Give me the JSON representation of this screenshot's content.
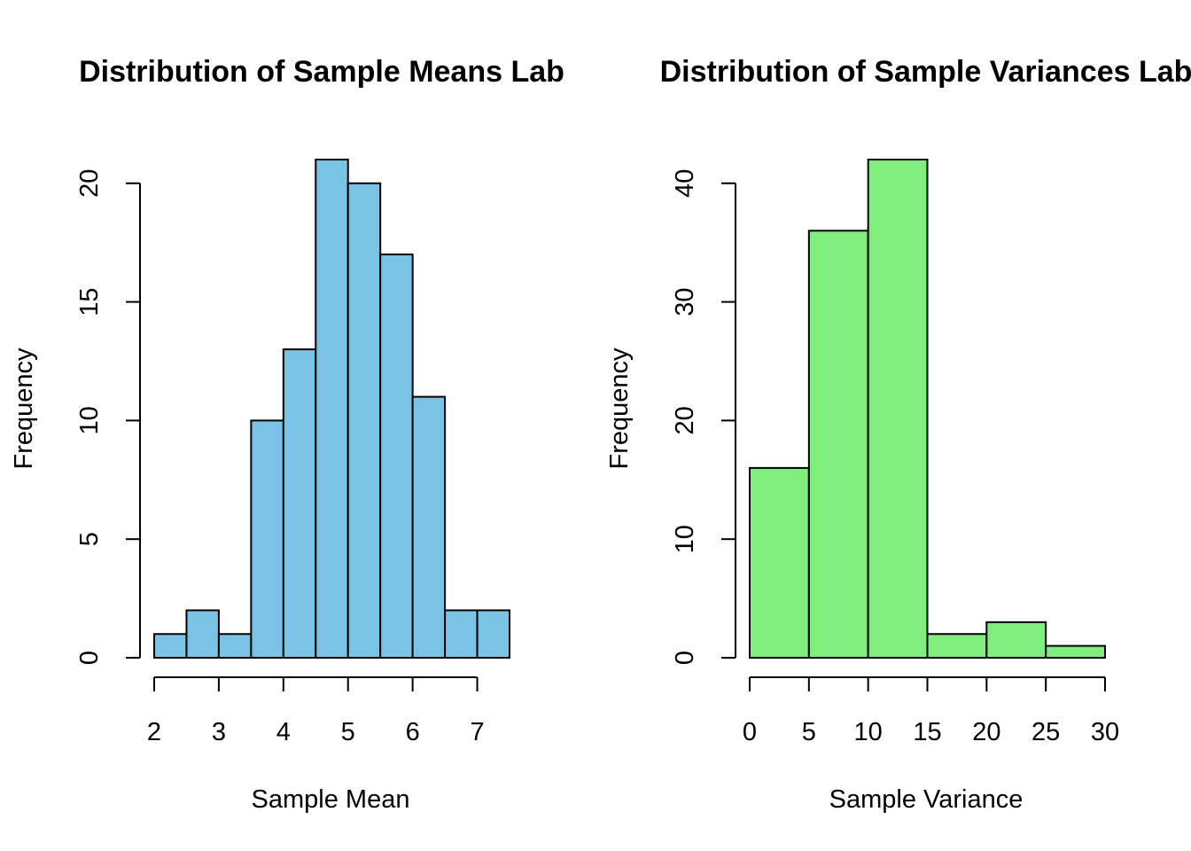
{
  "chart_data": [
    {
      "type": "histogram",
      "title": "Distribution of Sample Means Lab",
      "xlabel": "Sample Mean",
      "ylabel": "Frequency",
      "bar_color": "#7AC3E6",
      "bins": [
        [
          2.0,
          2.5
        ],
        [
          2.5,
          3.0
        ],
        [
          3.0,
          3.5
        ],
        [
          3.5,
          4.0
        ],
        [
          4.0,
          4.5
        ],
        [
          4.5,
          5.0
        ],
        [
          5.0,
          5.5
        ],
        [
          5.5,
          6.0
        ],
        [
          6.0,
          6.5
        ],
        [
          6.5,
          7.0
        ],
        [
          7.0,
          7.5
        ]
      ],
      "values": [
        1,
        2,
        1,
        10,
        13,
        21,
        20,
        17,
        11,
        2,
        2
      ],
      "xlim": [
        2,
        7.5
      ],
      "ylim": [
        0,
        21
      ],
      "x_ticks": [
        2,
        3,
        4,
        5,
        6,
        7
      ],
      "y_ticks": [
        0,
        5,
        10,
        15,
        20
      ]
    },
    {
      "type": "histogram",
      "title": "Distribution of Sample Variances Lab",
      "xlabel": "Sample Variance",
      "ylabel": "Frequency",
      "bar_color": "#80EE7E",
      "bins": [
        [
          0,
          5
        ],
        [
          5,
          10
        ],
        [
          10,
          15
        ],
        [
          15,
          20
        ],
        [
          20,
          25
        ],
        [
          25,
          30
        ]
      ],
      "values": [
        16,
        36,
        42,
        2,
        3,
        1
      ],
      "xlim": [
        0,
        30
      ],
      "ylim": [
        0,
        42
      ],
      "x_ticks": [
        0,
        5,
        10,
        15,
        20,
        25,
        30
      ],
      "y_ticks": [
        0,
        10,
        20,
        30,
        40
      ]
    }
  ]
}
